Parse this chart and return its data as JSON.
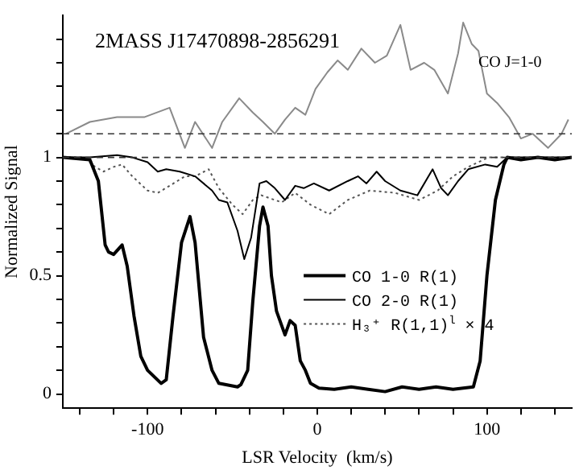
{
  "chart_data": {
    "type": "line",
    "title": "2MASS J17470898-2856291",
    "xlabel": "LSR Velocity  (km/s)",
    "ylabel": "Normalized Signal",
    "xlim": [
      -150,
      150
    ],
    "ylim": [
      -0.06,
      1.6
    ],
    "xticks": [
      {
        "value": -140,
        "label": null
      },
      {
        "value": -120,
        "label": null
      },
      -100,
      {
        "value": -80,
        "label": null
      },
      {
        "value": -60,
        "label": null
      },
      {
        "value": -40,
        "label": null
      },
      {
        "value": -20,
        "label": null
      },
      0,
      {
        "value": 20,
        "label": null
      },
      {
        "value": 40,
        "label": null
      },
      {
        "value": 60,
        "label": null
      },
      {
        "value": 80,
        "label": null
      },
      100,
      {
        "value": 120,
        "label": null
      },
      {
        "value": 140,
        "label": null
      }
    ],
    "yticks": [
      0,
      {
        "value": 0.1,
        "label": null
      },
      {
        "value": 0.2,
        "label": null
      },
      {
        "value": 0.3,
        "label": null
      },
      {
        "value": 0.4,
        "label": null
      },
      0.5,
      {
        "value": 0.6,
        "label": null
      },
      {
        "value": 0.7,
        "label": null
      },
      {
        "value": 0.8,
        "label": null
      },
      {
        "value": 0.9,
        "label": null
      },
      1,
      {
        "value": 1.1,
        "label": null
      },
      {
        "value": 1.2,
        "label": null
      },
      {
        "value": 1.3,
        "label": null
      },
      {
        "value": 1.4,
        "label": null
      },
      {
        "value": 1.5,
        "label": null
      }
    ],
    "grid": false,
    "legend": "right",
    "marker": "none",
    "ref_lines": [
      {
        "axis": "y",
        "value": 1,
        "color": "#333333",
        "line_style": "dashed"
      },
      {
        "axis": "y",
        "value": 1.1,
        "color": "#333333",
        "line_style": "dashed"
      }
    ],
    "annotations": [
      "CO J=1-0"
    ],
    "series": [
      {
        "name": "CO 1-0 R(1)",
        "color": "#000000",
        "line_style": "solid",
        "x": [
          -150,
          -134,
          -129,
          -125,
          -123,
          -120,
          -115,
          -112,
          -108,
          -104,
          -100,
          -92,
          -89,
          -85,
          -80,
          -75,
          -72,
          -67,
          -62,
          -58,
          -47,
          -45,
          -41,
          -38,
          -34,
          -32,
          -29,
          -27,
          -24,
          -19,
          -16,
          -13,
          -10,
          -7,
          -4,
          1,
          10,
          20,
          30,
          40,
          50,
          60,
          70,
          80,
          92,
          96,
          100,
          105,
          110,
          112,
          120,
          130,
          140,
          150
        ],
        "values": [
          1.0,
          0.99,
          0.9,
          0.63,
          0.6,
          0.59,
          0.63,
          0.54,
          0.33,
          0.16,
          0.1,
          0.045,
          0.06,
          0.33,
          0.64,
          0.75,
          0.64,
          0.24,
          0.1,
          0.045,
          0.03,
          0.04,
          0.1,
          0.39,
          0.71,
          0.79,
          0.71,
          0.5,
          0.35,
          0.25,
          0.31,
          0.29,
          0.14,
          0.1,
          0.045,
          0.025,
          0.02,
          0.03,
          0.02,
          0.01,
          0.03,
          0.02,
          0.03,
          0.02,
          0.03,
          0.14,
          0.5,
          0.82,
          0.97,
          1.0,
          0.99,
          1.0,
          0.99,
          1.0
        ]
      },
      {
        "name": "CO 2-0 R(1)",
        "color": "#000000",
        "line_style": "solid",
        "x": [
          -150,
          -134,
          -118,
          -109,
          -100,
          -94,
          -89,
          -81,
          -72,
          -62,
          -58,
          -53,
          -47,
          -43,
          -39,
          -34,
          -30,
          -25,
          -19,
          -13,
          -8,
          -2,
          7,
          18,
          24,
          29,
          35,
          40,
          49,
          59,
          68,
          73,
          77,
          83,
          89,
          99,
          106,
          112,
          130,
          150
        ],
        "values": [
          1.0,
          1.0,
          1.01,
          1.0,
          0.98,
          0.94,
          0.95,
          0.94,
          0.92,
          0.86,
          0.82,
          0.81,
          0.69,
          0.57,
          0.66,
          0.89,
          0.9,
          0.87,
          0.82,
          0.88,
          0.87,
          0.89,
          0.86,
          0.9,
          0.92,
          0.89,
          0.94,
          0.9,
          0.86,
          0.84,
          0.95,
          0.87,
          0.84,
          0.9,
          0.95,
          0.97,
          0.96,
          1.0,
          1.0,
          1.0
        ]
      },
      {
        "name": "H₃⁺ R(1,1)$^{l}$ × 4",
        "color": "#555555",
        "line_style": "dotted",
        "x": [
          -150,
          -137,
          -131,
          -126,
          -120,
          -115,
          -109,
          -100,
          -94,
          -87,
          -78,
          -72,
          -64,
          -58,
          -50,
          -44,
          -38,
          -33,
          -25,
          -21,
          -13,
          -4,
          7,
          18,
          31,
          46,
          60,
          71,
          80,
          89,
          101,
          150
        ],
        "values": [
          1.0,
          1.0,
          0.96,
          0.94,
          0.96,
          0.97,
          0.92,
          0.86,
          0.85,
          0.88,
          0.92,
          0.92,
          0.95,
          0.87,
          0.8,
          0.76,
          0.82,
          0.84,
          0.82,
          0.81,
          0.85,
          0.8,
          0.76,
          0.82,
          0.86,
          0.85,
          0.82,
          0.86,
          0.92,
          0.96,
          1.0,
          1.0
        ]
      },
      {
        "color": "#8a8a8a",
        "line_style": "solid",
        "x": [
          -148,
          -134,
          -118,
          -102,
          -87,
          -78,
          -72,
          -62,
          -56,
          -46,
          -38,
          -32,
          -25,
          -19,
          -13,
          -7,
          -1,
          6,
          12,
          18,
          26,
          34,
          41,
          49,
          55,
          63,
          69,
          77,
          83,
          86,
          91,
          95,
          100,
          106,
          113,
          120,
          127,
          136,
          144,
          148
        ],
        "values": [
          1.1,
          1.15,
          1.17,
          1.17,
          1.21,
          1.04,
          1.15,
          1.04,
          1.15,
          1.25,
          1.19,
          1.15,
          1.1,
          1.16,
          1.21,
          1.18,
          1.29,
          1.36,
          1.41,
          1.37,
          1.46,
          1.4,
          1.43,
          1.56,
          1.37,
          1.4,
          1.37,
          1.27,
          1.44,
          1.57,
          1.48,
          1.45,
          1.27,
          1.23,
          1.17,
          1.08,
          1.1,
          1.04,
          1.1,
          1.16
        ]
      }
    ]
  }
}
